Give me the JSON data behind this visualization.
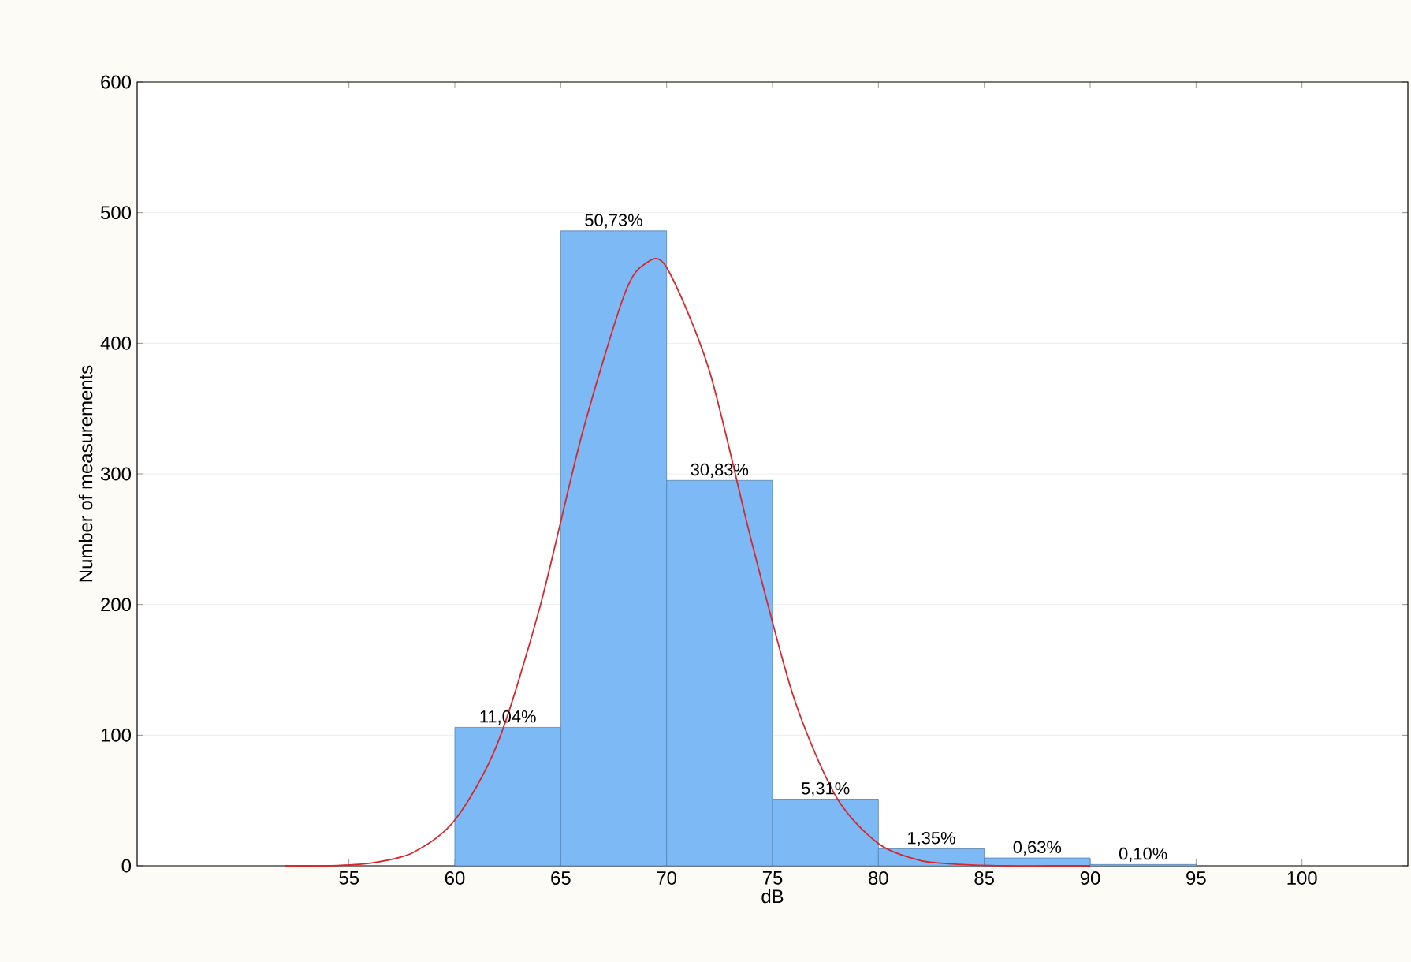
{
  "chart_data": {
    "type": "histogram",
    "xlabel": "dB",
    "ylabel": "Number of measurements",
    "xlim": [
      45,
      105
    ],
    "ylim": [
      0,
      600
    ],
    "xticks": [
      55,
      60,
      65,
      70,
      75,
      80,
      85,
      90,
      95,
      100
    ],
    "yticks": [
      0,
      100,
      200,
      300,
      400,
      500,
      600
    ],
    "grid": "y",
    "annotations": [
      {
        "text": "11,04%",
        "x": 62.5,
        "y": 106
      },
      {
        "text": "50,73%",
        "x": 67.5,
        "y": 486
      },
      {
        "text": "30,83%",
        "x": 72.5,
        "y": 295
      },
      {
        "text": "5,31%",
        "x": 77.5,
        "y": 51
      },
      {
        "text": "1,35%",
        "x": 82.5,
        "y": 13
      },
      {
        "text": "0,63%",
        "x": 87.5,
        "y": 6
      },
      {
        "text": "0,10%",
        "x": 92.5,
        "y": 1
      }
    ],
    "series": [
      {
        "color": "#7db9f5",
        "bins": [
          60,
          65,
          70,
          75,
          80,
          85,
          90,
          95
        ],
        "values": [
          106,
          486,
          295,
          51,
          13,
          6,
          1
        ]
      },
      {
        "type": "line",
        "color": "#d9262b",
        "x": [
          52,
          54,
          56,
          58,
          60,
          62,
          64,
          66,
          68,
          69,
          70,
          72,
          74,
          76,
          78,
          80,
          82,
          84,
          86,
          88,
          90
        ],
        "values": [
          0,
          0,
          2,
          10,
          35,
          93,
          197,
          330,
          437,
          461,
          458,
          380,
          249,
          129,
          53,
          17,
          4,
          1,
          0,
          0,
          0
        ]
      }
    ]
  }
}
